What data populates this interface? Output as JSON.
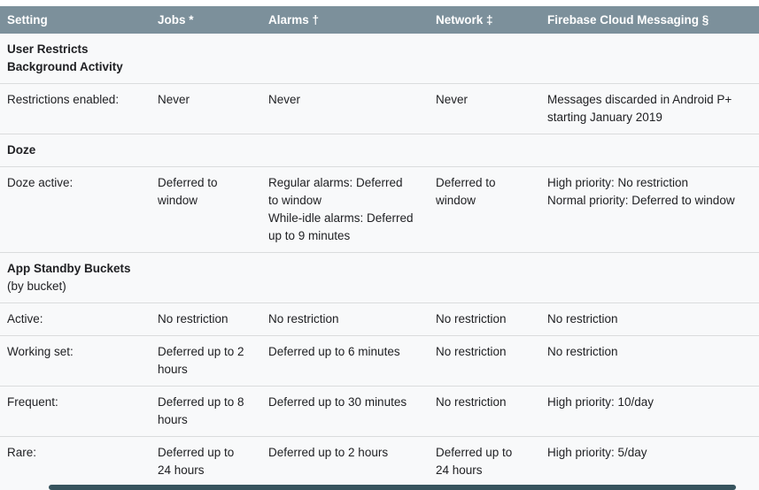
{
  "colors": {
    "header_bg": "#7c909b",
    "header_text": "#ffffff",
    "body_bg": "#f8f9fa",
    "row_border": "#dadcdd",
    "text": "#202124",
    "scrollbar_thumb": "#37545e"
  },
  "table": {
    "columns": [
      "Setting",
      "Jobs *",
      "Alarms †",
      "Network ‡",
      "Firebase Cloud Messaging §"
    ],
    "rows": [
      {
        "type": "section",
        "line1": "User Restricts",
        "line2": "Background Activity"
      },
      {
        "type": "data",
        "setting": "Restrictions enabled:",
        "jobs": "Never",
        "alarms": "Never",
        "network": "Never",
        "fcm": "Messages discarded in Android P+ starting January 2019"
      },
      {
        "type": "section",
        "line1": "Doze"
      },
      {
        "type": "data",
        "setting": "Doze active:",
        "jobs": "Deferred to window",
        "alarms": [
          "Regular alarms: Deferred to window",
          "While-idle alarms: Deferred up to 9 minutes"
        ],
        "network": "Deferred to window",
        "fcm": [
          "High priority: No restriction",
          "Normal priority: Deferred to window"
        ]
      },
      {
        "type": "section",
        "line1": "App Standby Buckets",
        "line2": "(by bucket)"
      },
      {
        "type": "data",
        "setting": "Active:",
        "jobs": "No restriction",
        "alarms": "No restriction",
        "network": "No restriction",
        "fcm": "No restriction"
      },
      {
        "type": "data",
        "setting": "Working set:",
        "jobs": "Deferred up to 2 hours",
        "alarms": "Deferred up to 6 minutes",
        "network": "No restriction",
        "fcm": "No restriction"
      },
      {
        "type": "data",
        "setting": "Frequent:",
        "jobs": "Deferred up to 8 hours",
        "alarms": "Deferred up to 30 minutes",
        "network": "No restriction",
        "fcm": "High priority: 10/day"
      },
      {
        "type": "data",
        "setting": "Rare:",
        "jobs": "Deferred up to 24 hours",
        "alarms": "Deferred up to 2 hours",
        "network": "Deferred up to 24 hours",
        "fcm": "High priority: 5/day"
      }
    ]
  }
}
